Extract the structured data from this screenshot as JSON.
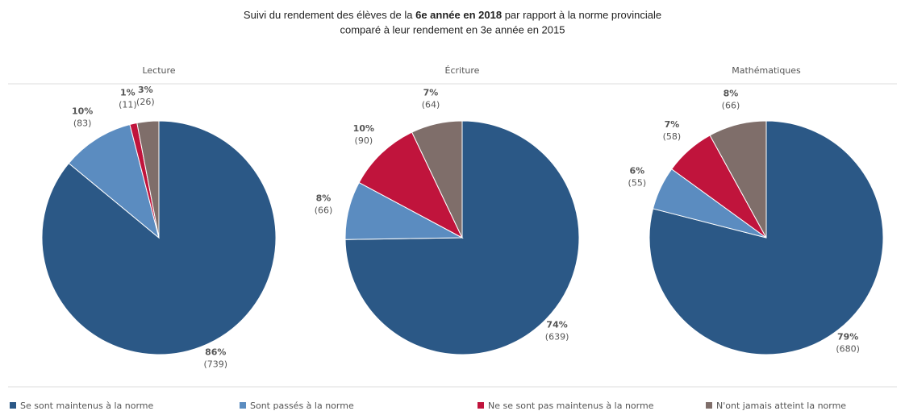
{
  "title": [
    "Suivi du rendement des élèves de la ",
    "6e année en 2018",
    " par rapport à la norme provinciale",
    "comparé à leur rendement en 3e année en 2015"
  ],
  "legend": {
    "names": [
      "Se sont maintenus à la norme",
      "Sont passés à la norme",
      "Ne se sont pas maintenus à la norme",
      "N'ont jamais atteint la norme"
    ],
    "colors": [
      "#2b5886",
      "#5b8cc0",
      "#c0143c",
      "#7f6e6a"
    ]
  },
  "chart_data": [
    {
      "type": "pie",
      "title": "Lecture",
      "values": [
        86,
        10,
        1,
        3
      ],
      "value_labels": [
        "86%",
        "10%",
        "1%",
        "3%"
      ],
      "count_labels": [
        "(739)",
        "(83)",
        "(11)",
        "(26)"
      ]
    },
    {
      "type": "pie",
      "title": "Écriture",
      "values": [
        74,
        8,
        10,
        7
      ],
      "value_labels": [
        "74%",
        "8%",
        "10%",
        "7%"
      ],
      "count_labels": [
        "(639)",
        "(66)",
        "(90)",
        "(64)"
      ]
    },
    {
      "type": "pie",
      "title": "Mathématiques",
      "values": [
        79,
        6,
        7,
        8
      ],
      "value_labels": [
        "79%",
        "6%",
        "7%",
        "8%"
      ],
      "count_labels": [
        "(680)",
        "(55)",
        "(58)",
        "(66)"
      ]
    }
  ]
}
